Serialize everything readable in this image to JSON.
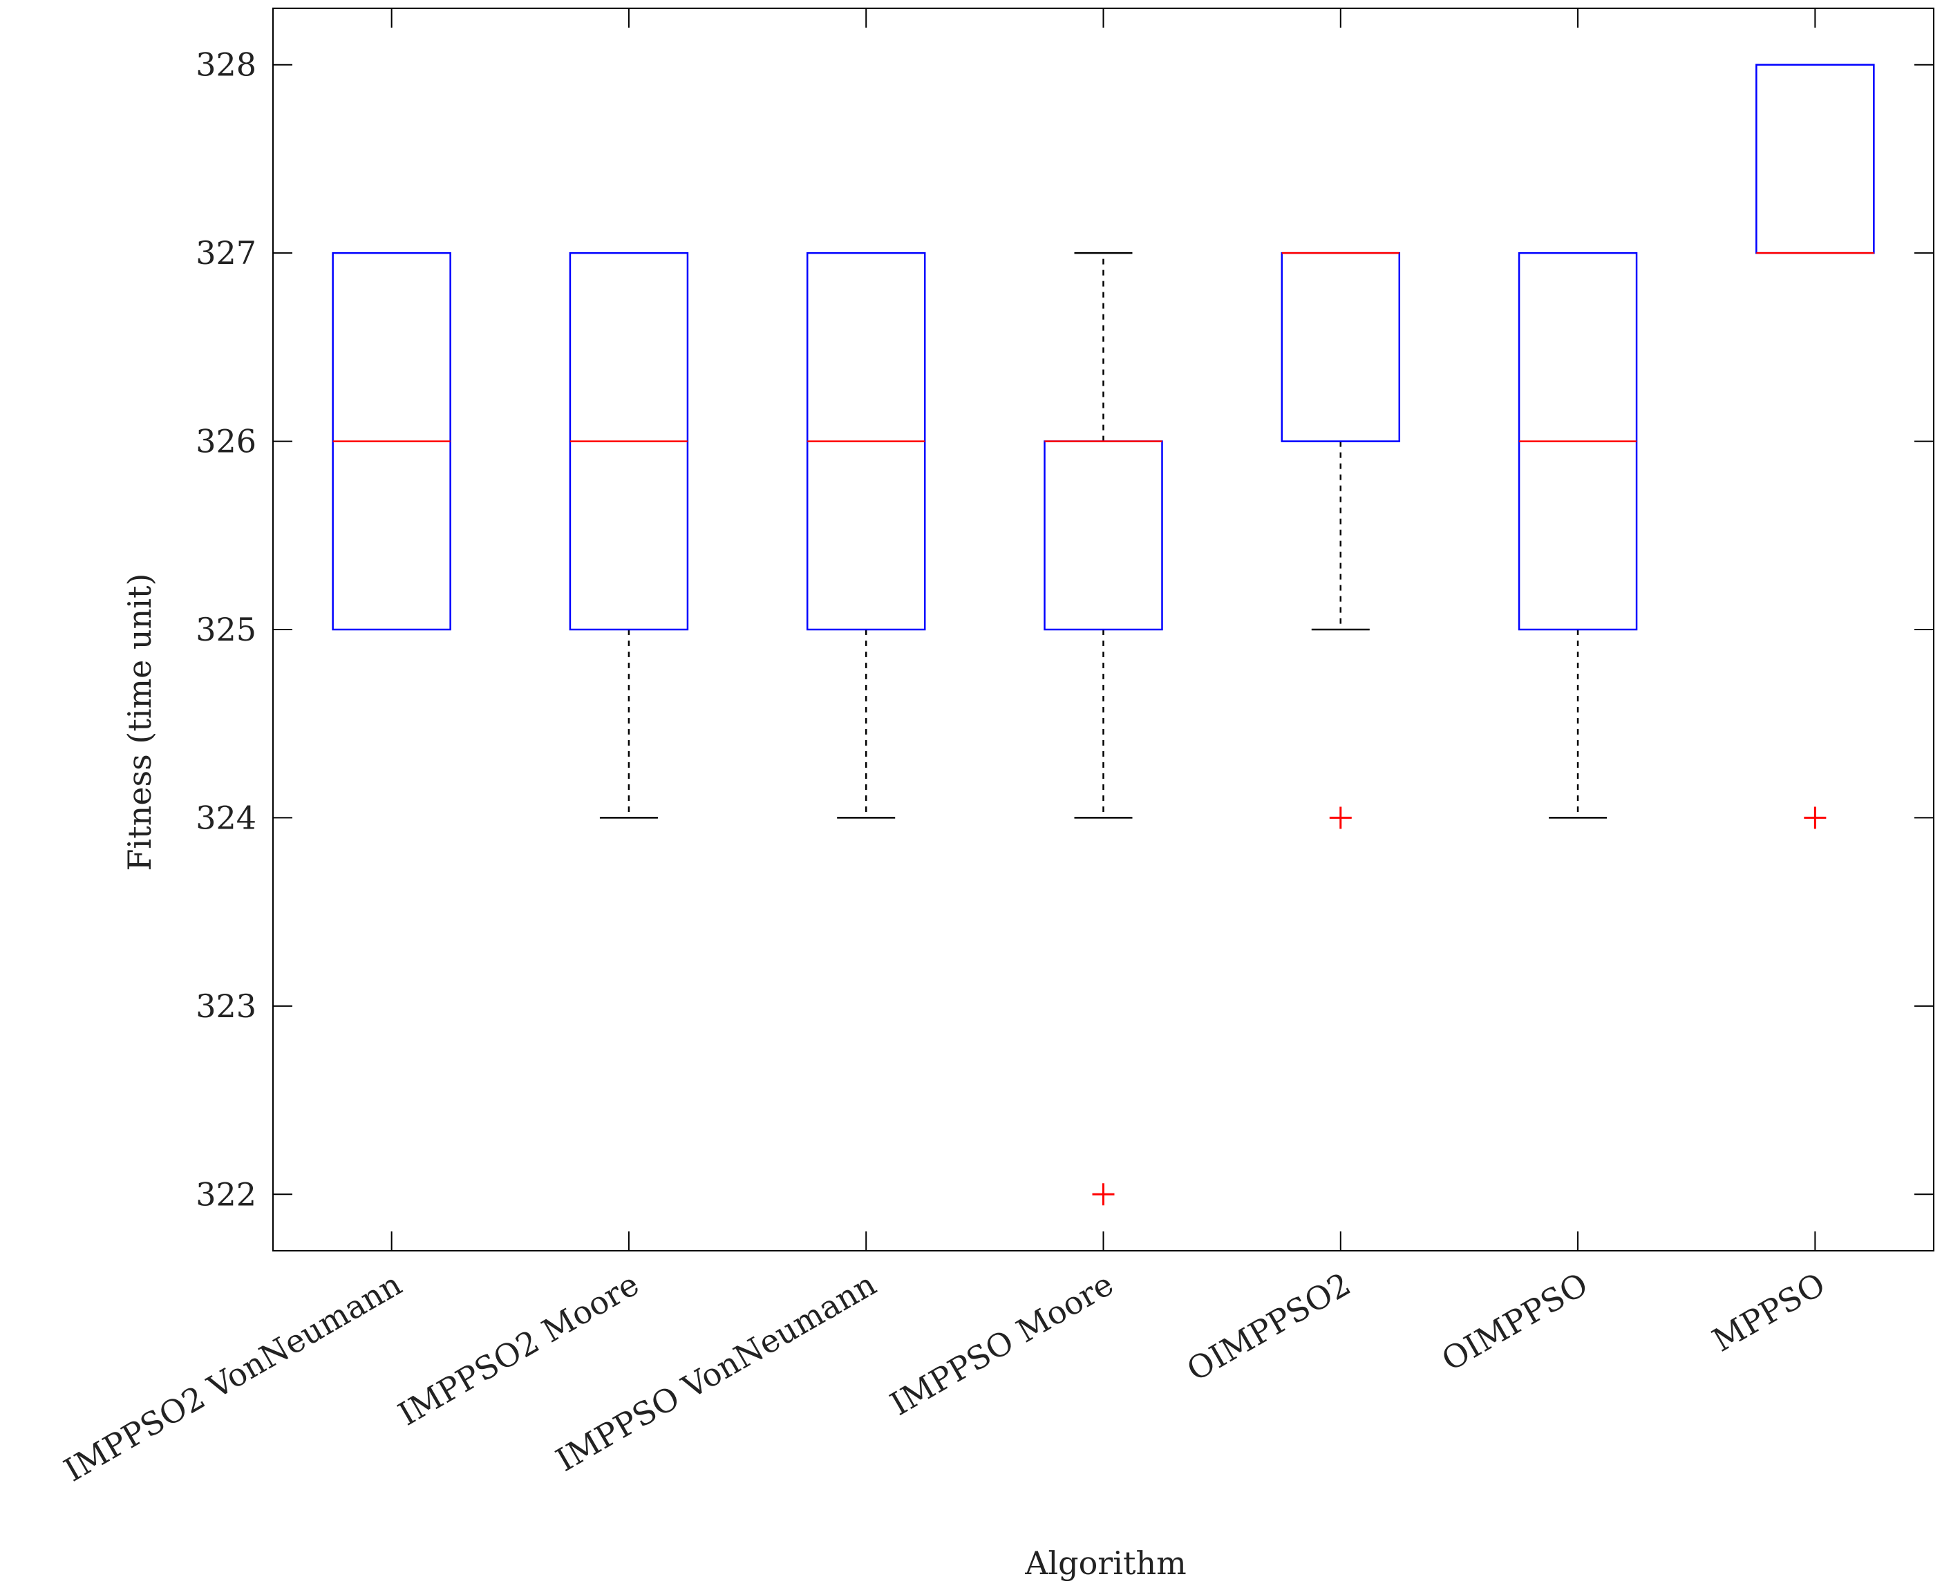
{
  "chart_data": {
    "type": "boxplot",
    "title": "",
    "xlabel": "Algorithm",
    "ylabel": "Fitness (time unit)",
    "ylim": [
      321.7,
      328.3
    ],
    "yticks": [
      322,
      323,
      324,
      325,
      326,
      327,
      328
    ],
    "categories": [
      "IMPPSO2 VonNeumann",
      "IMPPSO2 Moore",
      "IMPPSO VonNeumann",
      "IMPPSO Moore",
      "OIMPPSO2",
      "OIMPPSO",
      "MPPSO"
    ],
    "boxes": [
      {
        "whisker_low": 325,
        "q1": 325,
        "median": 326,
        "q3": 327,
        "whisker_high": 327,
        "outliers": []
      },
      {
        "whisker_low": 324,
        "q1": 325,
        "median": 326,
        "q3": 327,
        "whisker_high": 327,
        "outliers": []
      },
      {
        "whisker_low": 324,
        "q1": 325,
        "median": 326,
        "q3": 327,
        "whisker_high": 327,
        "outliers": []
      },
      {
        "whisker_low": 324,
        "q1": 325,
        "median": 326,
        "q3": 326,
        "whisker_high": 327,
        "outliers": [
          322
        ]
      },
      {
        "whisker_low": 325,
        "q1": 326,
        "median": 327,
        "q3": 327,
        "whisker_high": 327,
        "outliers": [
          324
        ]
      },
      {
        "whisker_low": 324,
        "q1": 325,
        "median": 326,
        "q3": 327,
        "whisker_high": 327,
        "outliers": []
      },
      {
        "whisker_low": 327,
        "q1": 327,
        "median": 327,
        "q3": 328,
        "whisker_high": 328,
        "outliers": [
          324
        ]
      }
    ],
    "colors": {
      "box": "#0000ff",
      "median": "#ff0000",
      "whisker": "#000000",
      "outlier": "#ff0000",
      "axes": "#000000"
    },
    "grid": false
  }
}
